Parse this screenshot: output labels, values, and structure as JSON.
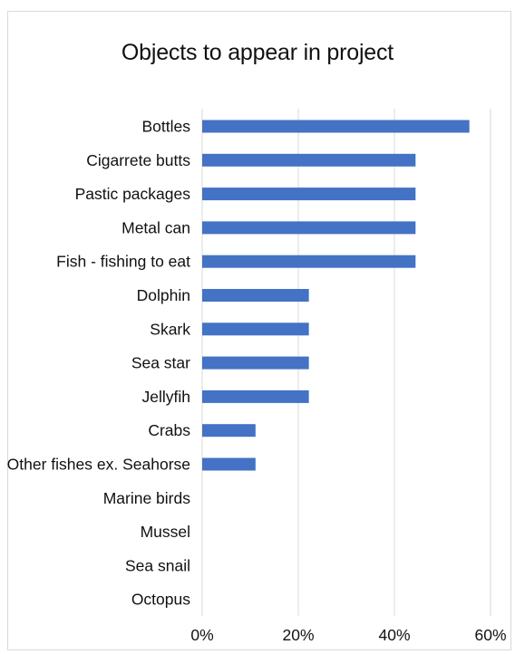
{
  "chart_data": {
    "type": "bar",
    "orientation": "horizontal",
    "title": "Objects to appear in project",
    "categories": [
      "Bottles",
      "Cigarrete butts",
      "Pastic packages",
      "Metal can",
      "Fish - fishing to eat",
      "Dolphin",
      "Skark",
      "Sea star",
      "Jellyfih",
      "Crabs",
      "Other fishes ex. Seahorse",
      "Marine birds",
      "Mussel",
      "Sea snail",
      "Octopus"
    ],
    "values": [
      0.556,
      0.444,
      0.444,
      0.444,
      0.444,
      0.222,
      0.222,
      0.222,
      0.222,
      0.111,
      0.111,
      0,
      0,
      0,
      0
    ],
    "xlim": [
      0,
      0.6
    ],
    "xticks": [
      0,
      0.2,
      0.4,
      0.6
    ],
    "xtick_labels": [
      "0%",
      "20%",
      "40%",
      "60%"
    ],
    "xlabel": "",
    "ylabel": "",
    "grid": "vertical",
    "legend": "none",
    "bar_color": "#4472c4",
    "grid_color": "#d9d9d9"
  }
}
